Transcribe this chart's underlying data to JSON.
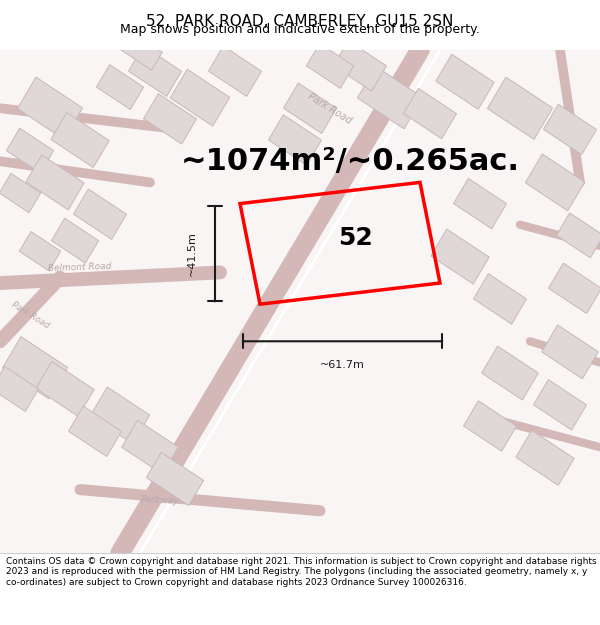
{
  "title": "52, PARK ROAD, CAMBERLEY, GU15 2SN",
  "subtitle": "Map shows position and indicative extent of the property.",
  "area_text": "~1074m²/~0.265ac.",
  "label_52": "52",
  "dim_width": "~61.7m",
  "dim_height": "~41.5m",
  "footer": "Contains OS data © Crown copyright and database right 2021. This information is subject to Crown copyright and database rights 2023 and is reproduced with the permission of HM Land Registry. The polygons (including the associated geometry, namely x, y co-ordinates) are subject to Crown copyright and database rights 2023 Ordnance Survey 100026316.",
  "bg_color": "#f5f0f0",
  "map_bg": "#f9f5f5",
  "road_color": "#e8a0a0",
  "building_fill": "#e0d8d8",
  "building_edge": "#c8b8b8",
  "plot_color": "#ff0000",
  "dim_color": "#1a1a1a",
  "road_label_color": "#b0a0a0",
  "title_fontsize": 11,
  "subtitle_fontsize": 9,
  "area_fontsize": 22,
  "label_fontsize": 18,
  "footer_fontsize": 6.5
}
